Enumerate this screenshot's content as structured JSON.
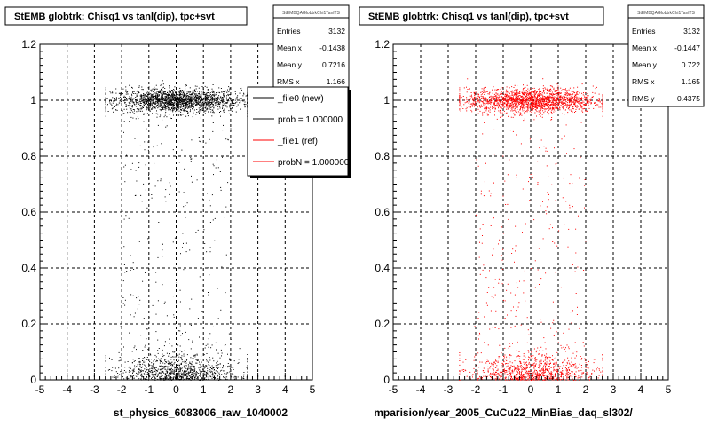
{
  "panels": [
    {
      "title": "StEMB globtrk: Chisq1 vs tanl(dip), tpc+svt",
      "xlabel": "st_physics_6083006_raw_1040002",
      "stats": {
        "title": "StEMBQAGlobtrkChi1TanlTS",
        "rows": [
          {
            "label": "Entries",
            "value": "3132"
          },
          {
            "label": "Mean x",
            "value": "-0.1438"
          },
          {
            "label": "Mean y",
            "value": "0.7216"
          },
          {
            "label": "RMS x",
            "value": "1.166"
          }
        ]
      },
      "legend": [
        {
          "label": "_file0 (new)",
          "color": "#000000"
        },
        {
          "label": "prob = 1.000000",
          "color": "#000000"
        },
        {
          "label": "_file1 (ref)",
          "color": "#ff0000"
        },
        {
          "label": "probN = 1.000000",
          "color": "#ff0000"
        }
      ]
    },
    {
      "title": "StEMB globtrk: Chisq1 vs tanl(dip), tpc+svt",
      "xlabel": "mparision/year_2005_CuCu22_MinBias_daq_sl302/",
      "stats": {
        "title": "StEMBQAGlobtrkChi1TanlTS",
        "rows": [
          {
            "label": "Entries",
            "value": "3132"
          },
          {
            "label": "Mean x",
            "value": "-0.1447"
          },
          {
            "label": "Mean y",
            "value": "0.722"
          },
          {
            "label": "RMS x",
            "value": "1.165"
          },
          {
            "label": "RMS y",
            "value": "0.4375"
          }
        ]
      }
    }
  ],
  "footer_text": "... ... ...",
  "colors": {
    "new": "#000000",
    "ref": "#ff0000",
    "grid": "#000000",
    "background": "#ffffff"
  },
  "chart_data": [
    {
      "type": "scatter",
      "title": "StEMB globtrk: Chisq1 vs tanl(dip), tpc+svt",
      "xlabel": "st_physics_6083006_raw_1040002",
      "ylabel": "",
      "xlim": [
        -5,
        5
      ],
      "ylim": [
        0,
        1.2
      ],
      "x_ticks": [
        -5,
        -4,
        -3,
        -2,
        -1,
        0,
        1,
        2,
        3,
        4,
        5
      ],
      "y_ticks": [
        0,
        0.2,
        0.4,
        0.6,
        0.8,
        1,
        1.2
      ],
      "y_tick_labels": [
        "0",
        "0.2",
        "0.4",
        "0.6",
        "0.8",
        "1",
        "1.2"
      ],
      "grid": true,
      "series": [
        {
          "color": "#000000",
          "clusters": [
            {
              "y": 1.0,
              "x_range": [
                -2.6,
                2.6
              ],
              "y_spread": 0.022,
              "relative_density": 0.62
            },
            {
              "y": 0.0,
              "x_range": [
                -2.6,
                2.6
              ],
              "y_spread": 0.045,
              "relative_density": 0.3
            },
            {
              "y_range": [
                0.05,
                0.95
              ],
              "x_range": [
                -2.0,
                2.0
              ],
              "relative_density": 0.08
            }
          ],
          "entries": 3132
        }
      ]
    },
    {
      "type": "scatter",
      "title": "StEMB globtrk: Chisq1 vs tanl(dip), tpc+svt",
      "xlabel": "mparision/year_2005_CuCu22_MinBias_daq_sl302/",
      "ylabel": "",
      "xlim": [
        -5,
        5
      ],
      "ylim": [
        0,
        1.2
      ],
      "x_ticks": [
        -5,
        -4,
        -3,
        -2,
        -1,
        0,
        1,
        2,
        3,
        4,
        5
      ],
      "y_ticks": [
        0,
        0.2,
        0.4,
        0.6,
        0.8,
        1,
        1.2
      ],
      "y_tick_labels": [
        "0",
        "0.2",
        "0.4",
        "0.6",
        "0.8",
        "1",
        "1.2"
      ],
      "grid": true,
      "series": [
        {
          "color": "#ff0000",
          "clusters": [
            {
              "y": 1.0,
              "x_range": [
                -2.6,
                2.6
              ],
              "y_spread": 0.022,
              "relative_density": 0.62
            },
            {
              "y": 0.0,
              "x_range": [
                -2.6,
                2.6
              ],
              "y_spread": 0.045,
              "relative_density": 0.3
            },
            {
              "y_range": [
                0.05,
                0.95
              ],
              "x_range": [
                -2.0,
                2.0
              ],
              "relative_density": 0.08
            }
          ],
          "entries": 3132
        }
      ]
    }
  ]
}
